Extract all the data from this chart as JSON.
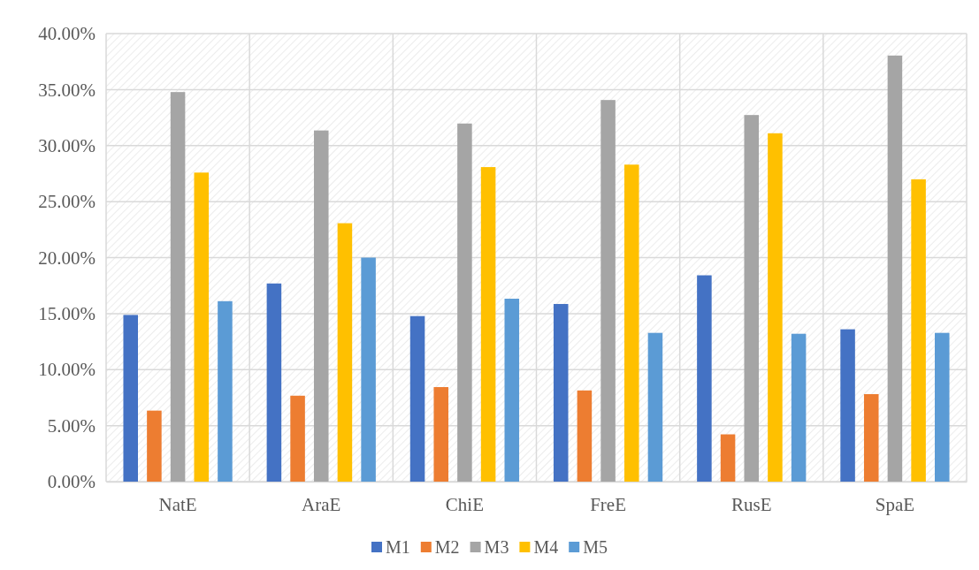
{
  "chart_data": {
    "type": "bar",
    "categories": [
      "NatE",
      "AraE",
      "ChiE",
      "FreE",
      "RusE",
      "SpaE"
    ],
    "series": [
      {
        "name": "M1",
        "color": "#4472c4",
        "values": [
          14.88,
          17.69,
          14.78,
          15.86,
          18.42,
          13.6
        ]
      },
      {
        "name": "M2",
        "color": "#ed7d31",
        "values": [
          6.34,
          7.67,
          8.44,
          8.14,
          4.22,
          7.81
        ]
      },
      {
        "name": "M3",
        "color": "#a5a5a5",
        "values": [
          34.78,
          31.35,
          31.97,
          34.07,
          32.73,
          38.04
        ]
      },
      {
        "name": "M4",
        "color": "#ffc000",
        "values": [
          27.59,
          23.07,
          28.08,
          28.3,
          31.1,
          26.99
        ]
      },
      {
        "name": "M5",
        "color": "#5b9bd5",
        "values": [
          16.11,
          20.0,
          16.33,
          13.28,
          13.2,
          13.28
        ]
      }
    ],
    "ylim": [
      0,
      40
    ],
    "yticks": [
      {
        "value": 0,
        "label": "0.00%"
      },
      {
        "value": 5,
        "label": "5.00%"
      },
      {
        "value": 10,
        "label": "10.00%"
      },
      {
        "value": 15,
        "label": "15.00%"
      },
      {
        "value": 20,
        "label": "20.00%"
      },
      {
        "value": 25,
        "label": "25.00%"
      },
      {
        "value": 30,
        "label": "30.00%"
      },
      {
        "value": 35,
        "label": "35.00%"
      },
      {
        "value": 40,
        "label": "40.00%"
      }
    ],
    "grid": true,
    "legend": "bottom"
  }
}
